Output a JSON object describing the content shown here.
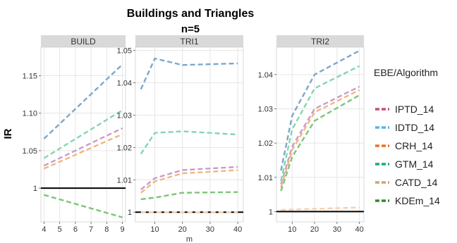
{
  "chart_data": {
    "type": "line",
    "title": "Buildings and Triangles",
    "subtitle": "n=5",
    "ylabel": "IR",
    "legend": {
      "title": "EBE/Algorithm",
      "placement": "right",
      "entries": [
        {
          "name": "IPTD_14",
          "color": "#c2507a"
        },
        {
          "name": "IDTD_14",
          "color": "#56b4e9"
        },
        {
          "name": "CRH_14",
          "color": "#e8742a"
        },
        {
          "name": "GTM_14",
          "color": "#1aa886"
        },
        {
          "name": "CATD_14",
          "color": "#d4a373"
        },
        {
          "name": "KDEm_14",
          "color": "#2e8b2e"
        }
      ]
    },
    "grid": true,
    "reference_line": 1,
    "panels": [
      {
        "strip": "BUILD",
        "xlabel": "",
        "x": [
          4,
          9
        ],
        "xlim": [
          3.8,
          9.2
        ],
        "xticks": [
          4,
          5,
          6,
          7,
          8,
          9
        ],
        "ylim": [
          0.955,
          1.188
        ],
        "yticks": [
          1,
          1.05,
          1.1,
          1.15
        ],
        "ytick_labels": [
          "1",
          "1.05",
          "1.10",
          "1.15"
        ],
        "series": [
          {
            "name": "IDTD_14",
            "color": "#7ea6cc",
            "values": [
              1.066,
              1.165
            ]
          },
          {
            "name": "GTM_14",
            "color": "#82d6b2",
            "values": [
              1.04,
              1.104
            ]
          },
          {
            "name": "IPTD_14",
            "color": "#c99bcb",
            "values": [
              1.03,
              1.08
            ]
          },
          {
            "name": "CATD_14",
            "color": "#f3b57e",
            "values": [
              1.026,
              1.072
            ]
          },
          {
            "name": "KDEm_14",
            "color": "#7cc47a",
            "values": [
              0.991,
              0.961
            ]
          }
        ]
      },
      {
        "strip": "TRI1",
        "xlabel": "m",
        "x": [
          5,
          10,
          20,
          40
        ],
        "xlim": [
          3,
          42
        ],
        "xticks": [
          10,
          20,
          30,
          40
        ],
        "ylim": [
          0.997,
          1.051
        ],
        "yticks": [
          1,
          1.01,
          1.02,
          1.03,
          1.04,
          1.05
        ],
        "ytick_labels": [
          "1",
          "1.01",
          "1.02",
          "1.03",
          "1.04",
          "1.05"
        ],
        "series": [
          {
            "name": "IDTD_14",
            "color": "#7ea6cc",
            "values": [
              1.038,
              1.0475,
              1.0455,
              1.046
            ]
          },
          {
            "name": "GTM_14",
            "color": "#82d6b2",
            "values": [
              1.018,
              1.0245,
              1.025,
              1.024
            ]
          },
          {
            "name": "IPTD_14",
            "color": "#c99bcb",
            "values": [
              1.007,
              1.0105,
              1.013,
              1.014
            ]
          },
          {
            "name": "CATD_14",
            "color": "#f3b57e",
            "values": [
              1.006,
              1.0095,
              1.012,
              1.013
            ]
          },
          {
            "name": "KDEm_14",
            "color": "#7cc47a",
            "values": [
              1.004,
              1.0045,
              1.006,
              1.0062
            ]
          },
          {
            "name": "CRH_14",
            "color": "#f7cfae",
            "values": [
              1.0,
              1.0,
              1.0,
              1.0
            ]
          }
        ]
      },
      {
        "strip": "TRI2",
        "xlabel": "",
        "x": [
          5,
          10,
          20,
          40
        ],
        "xlim": [
          3,
          42
        ],
        "xticks": [
          10,
          20,
          30,
          40
        ],
        "ylim": [
          0.997,
          1.048
        ],
        "yticks": [
          1,
          1.01,
          1.02,
          1.03,
          1.04
        ],
        "ytick_labels": [
          "1",
          "1.01",
          "1.02",
          "1.03",
          "1.04"
        ],
        "series": [
          {
            "name": "IDTD_14",
            "color": "#7ea6cc",
            "values": [
              1.012,
              1.028,
              1.04,
              1.047
            ]
          },
          {
            "name": "GTM_14",
            "color": "#82d6b2",
            "values": [
              1.009,
              1.024,
              1.036,
              1.0425
            ]
          },
          {
            "name": "IPTD_14",
            "color": "#c99bcb",
            "values": [
              1.008,
              1.019,
              1.03,
              1.0365
            ]
          },
          {
            "name": "CATD_14",
            "color": "#f3b57e",
            "values": [
              1.007,
              1.018,
              1.029,
              1.0355
            ]
          },
          {
            "name": "KDEm_14",
            "color": "#7cc47a",
            "values": [
              1.006,
              1.016,
              1.0265,
              1.034
            ]
          },
          {
            "name": "CRH_14",
            "color": "#f7cfae",
            "values": [
              1.0005,
              1.0006,
              1.0008,
              1.0012
            ]
          }
        ]
      }
    ]
  }
}
